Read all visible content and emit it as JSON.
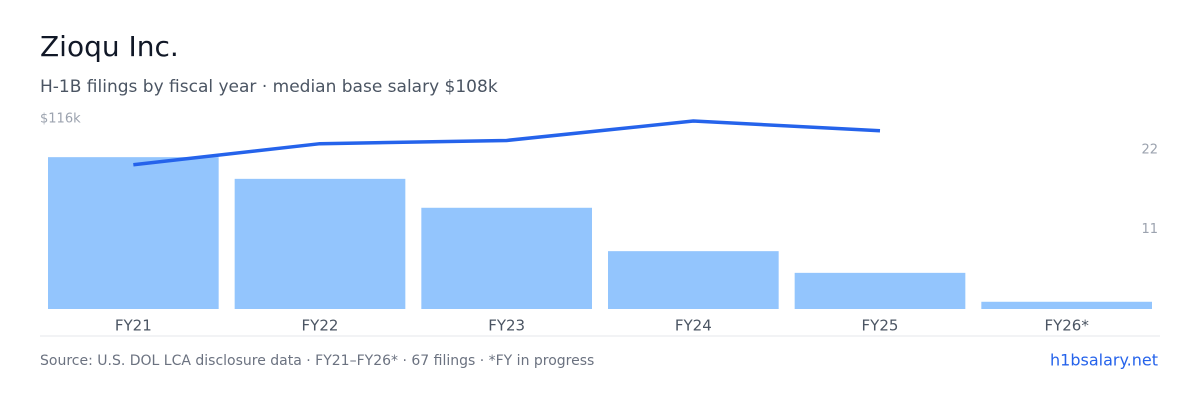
{
  "chart_data": {
    "type": "bar",
    "title": "Zioqu Inc.",
    "subtitle": "H-1B filings by fiscal year · median base salary $108k",
    "categories": [
      "FY21",
      "FY22",
      "FY23",
      "FY24",
      "FY25",
      "FY26*"
    ],
    "series": [
      {
        "name": "Filings",
        "type": "bar",
        "axis": "y2",
        "color": "#93c5fd",
        "values": [
          21,
          18,
          14,
          8,
          5,
          1
        ]
      },
      {
        "name": "Median base salary",
        "type": "line",
        "axis": "y",
        "color": "#2563eb",
        "values": [
          89000,
          102000,
          104000,
          116000,
          110000,
          null
        ]
      }
    ],
    "ylim": [
      0,
      116000
    ],
    "yticks": [
      {
        "value": 116000,
        "label": "$116k"
      }
    ],
    "y2lim": [
      0,
      26
    ],
    "y2ticks": [
      11,
      22
    ],
    "source": "Source: U.S. DOL LCA disclosure data · FY21–FY26* · 67 filings · *FY in progress",
    "link": "h1bsalary.net"
  }
}
